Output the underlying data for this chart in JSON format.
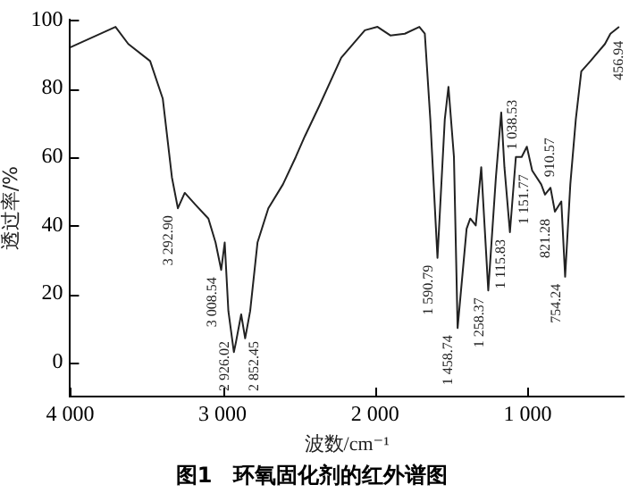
{
  "chart_data": {
    "type": "line",
    "title": "图1　环氧固化剂的红外谱图",
    "xlabel": "波数/cm⁻¹",
    "ylabel": "透过率/%",
    "xlim": [
      4000,
      370
    ],
    "ylim": [
      -10,
      100
    ],
    "xticks": [
      {
        "value": 4000,
        "label": "4 000"
      },
      {
        "value": 3000,
        "label": "3 000"
      },
      {
        "value": 2000,
        "label": "2 000"
      },
      {
        "value": 1000,
        "label": "1 000"
      }
    ],
    "yticks": [
      0,
      20,
      40,
      60,
      80,
      100
    ],
    "grid": false,
    "legend": false,
    "marker": "none",
    "line_style": "solid",
    "series": [
      {
        "color": "#222222",
        "x": [
          4000,
          3702,
          3618,
          3475,
          3392,
          3332,
          3293,
          3248,
          3177,
          3093,
          3046,
          3009,
          2986,
          2962,
          2926,
          2914,
          2878,
          2852,
          2819,
          2771,
          2700,
          2604,
          2520,
          2461,
          2365,
          2222,
          2067,
          1984,
          1900,
          1805,
          1710,
          1674,
          1638,
          1591,
          1543,
          1519,
          1483,
          1459,
          1400,
          1376,
          1340,
          1304,
          1258,
          1208,
          1173,
          1152,
          1116,
          1077,
          1039,
          1005,
          970,
          911,
          886,
          850,
          821,
          779,
          754,
          720,
          684,
          648,
          588,
          541,
          493,
          457,
          400
        ],
        "values": [
          92,
          98,
          93,
          88,
          77,
          54,
          45,
          49.5,
          46,
          42,
          35,
          27,
          35,
          15,
          3,
          5.5,
          14,
          7,
          15,
          35,
          45,
          52,
          60,
          66,
          75,
          89,
          97,
          98,
          95.5,
          96,
          98,
          96,
          71,
          30.5,
          71,
          80.5,
          60,
          10,
          39,
          42,
          40,
          57,
          21,
          54,
          73,
          57,
          38,
          60,
          60,
          63,
          56,
          52,
          49,
          51,
          44,
          47,
          25,
          52,
          71,
          85,
          88,
          90.5,
          93,
          96,
          98
        ]
      }
    ],
    "annotations": [
      {
        "text": "3 292.90",
        "x": 3293,
        "y": 45
      },
      {
        "text": "3 008.54",
        "x": 3009,
        "y": 27
      },
      {
        "text": "2 926.02",
        "x": 2926,
        "y": 3
      },
      {
        "text": "2 852.45",
        "x": 2852,
        "y": 7
      },
      {
        "text": "1 590.79",
        "x": 1591,
        "y": 30.5
      },
      {
        "text": "1 458.74",
        "x": 1459,
        "y": 10
      },
      {
        "text": "1 258.37",
        "x": 1258,
        "y": 21
      },
      {
        "text": "1 151.77",
        "x": 1152,
        "y": 57
      },
      {
        "text": "1 115.83",
        "x": 1116,
        "y": 38
      },
      {
        "text": "1 038.53",
        "x": 1039,
        "y": 60
      },
      {
        "text": "910.57",
        "x": 911,
        "y": 52
      },
      {
        "text": "821.28",
        "x": 821,
        "y": 44
      },
      {
        "text": "754.24",
        "x": 754,
        "y": 25
      },
      {
        "text": "456.94",
        "x": 457,
        "y": 96
      }
    ]
  }
}
